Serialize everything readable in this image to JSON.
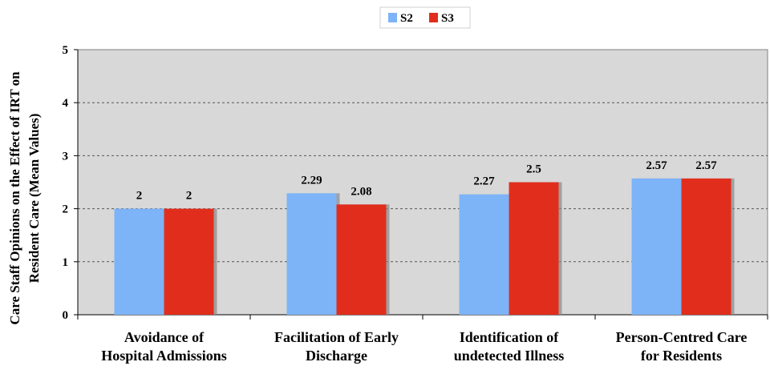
{
  "chart_data": {
    "type": "bar",
    "categories": [
      [
        "Avoidance of",
        "Hospital Admissions"
      ],
      [
        "Facilitation of Early",
        "Discharge"
      ],
      [
        "Identification of",
        "undetected Illness"
      ],
      [
        "Person-Centred Care",
        "for Residents"
      ]
    ],
    "series": [
      {
        "name": "S2",
        "values": [
          2,
          2.29,
          2.27,
          2.57
        ],
        "labels": [
          "2",
          "2.29",
          "2.27",
          "2.57"
        ],
        "color": "#7db4f7"
      },
      {
        "name": "S3",
        "values": [
          2,
          2.08,
          2.5,
          2.57
        ],
        "labels": [
          "2",
          "2.08",
          "2.5",
          "2.57"
        ],
        "color": "#e12d1d"
      }
    ],
    "ylabel": [
      "Care Staff Opinions on the Effect of IRT on",
      "Resident Care (Mean Values)"
    ],
    "ylim": [
      0,
      5
    ],
    "yticks": [
      0,
      1,
      2,
      3,
      4,
      5
    ],
    "grid": true,
    "legend_position": "top-center",
    "plot_background": "#d8d8d8"
  }
}
